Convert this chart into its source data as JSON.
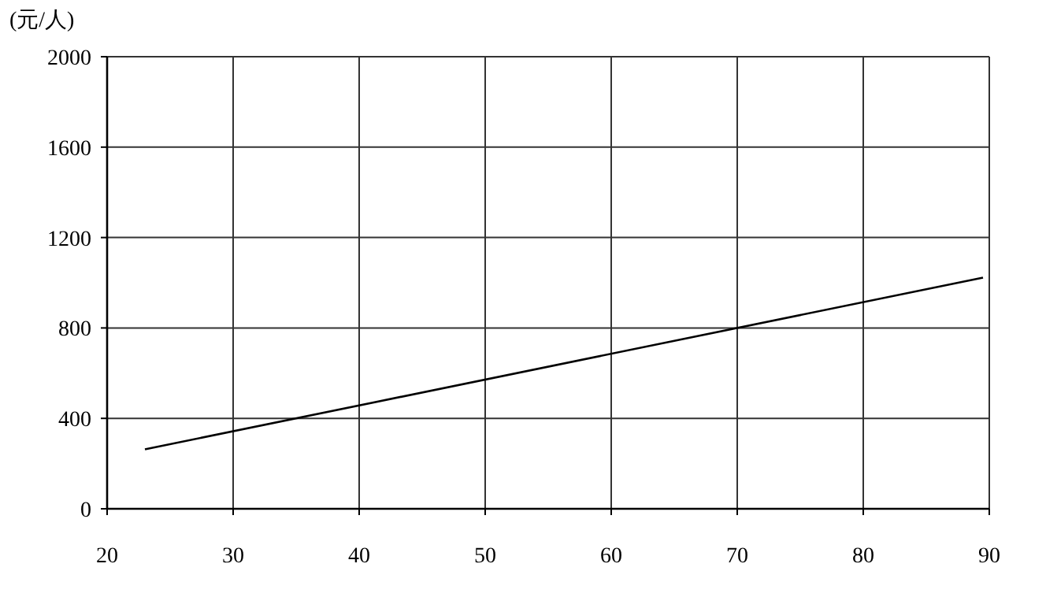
{
  "chart_data": {
    "type": "line",
    "ylabel": "(元/人)",
    "x": [
      23,
      89.5
    ],
    "series": [
      {
        "color": "#000000",
        "values": [
          263,
          1023
        ]
      }
    ],
    "xlim": [
      20,
      90
    ],
    "ylim": [
      0,
      2000
    ],
    "xticks": [
      20,
      30,
      40,
      50,
      60,
      70,
      80,
      90
    ],
    "yticks": [
      0,
      400,
      800,
      1200,
      1600,
      2000
    ],
    "grid": true
  }
}
